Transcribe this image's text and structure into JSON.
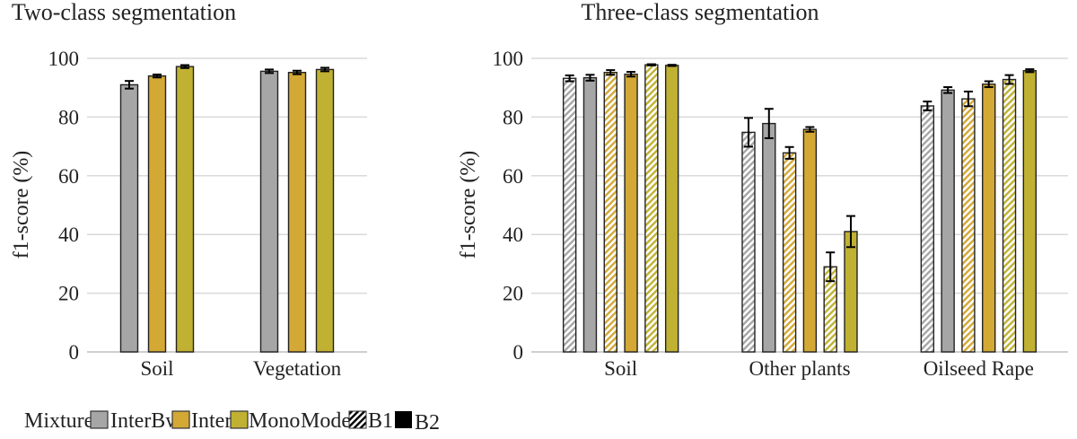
{
  "colors": {
    "InterBw": "#a6a6a6",
    "Inter": "#d3a835",
    "Mono": "#c0b132",
    "grid": "#d9d9d9",
    "error": "#000000"
  },
  "legend": {
    "mixtures_label": "Mixtures:",
    "mixtures": [
      "InterBw",
      "Inter",
      "Mono"
    ],
    "model_label": "Model:",
    "models": [
      "B1",
      "B2"
    ],
    "model_fill": {
      "B1": "hatched",
      "B2": "solid"
    }
  },
  "chart_data": [
    {
      "type": "bar",
      "title": "Two-class segmentation",
      "ylabel": "f1-score (%)",
      "xlabel": "",
      "ylim": [
        0,
        100
      ],
      "yticks": [
        "0",
        "20",
        "40",
        "60",
        "80",
        "100"
      ],
      "grid": true,
      "categories": [
        "Soil",
        "Vegetation"
      ],
      "series": [
        {
          "name": "InterBw",
          "model": "B2",
          "values": [
            91.0,
            95.6
          ],
          "errors": [
            1.3,
            0.6
          ]
        },
        {
          "name": "Inter",
          "model": "B2",
          "values": [
            94.0,
            95.2
          ],
          "errors": [
            0.5,
            0.6
          ]
        },
        {
          "name": "Mono",
          "model": "B2",
          "values": [
            97.2,
            96.2
          ],
          "errors": [
            0.5,
            0.6
          ]
        }
      ]
    },
    {
      "type": "bar",
      "title": "Three-class segmentation",
      "ylabel": "f1-score (%)",
      "xlabel": "",
      "ylim": [
        0,
        100
      ],
      "yticks": [
        "0",
        "20",
        "40",
        "60",
        "80",
        "100"
      ],
      "grid": true,
      "categories": [
        "Soil",
        "Other plants",
        "Oilseed Rape"
      ],
      "series": [
        {
          "name": "InterBw",
          "model": "B1",
          "values": [
            93.2,
            74.8,
            83.8
          ],
          "errors": [
            1.0,
            4.9,
            1.5
          ]
        },
        {
          "name": "InterBw",
          "model": "B2",
          "values": [
            93.4,
            77.8,
            89.2
          ],
          "errors": [
            1.0,
            5.0,
            1.0
          ]
        },
        {
          "name": "Inter",
          "model": "B1",
          "values": [
            95.2,
            67.8,
            86.2
          ],
          "errors": [
            0.8,
            2.0,
            2.5
          ]
        },
        {
          "name": "Inter",
          "model": "B2",
          "values": [
            94.6,
            75.8,
            91.2
          ],
          "errors": [
            0.8,
            0.8,
            1.0
          ]
        },
        {
          "name": "Mono",
          "model": "B1",
          "values": [
            97.8,
            29.0,
            92.8
          ],
          "errors": [
            0.2,
            4.9,
            1.5
          ]
        },
        {
          "name": "Mono",
          "model": "B2",
          "values": [
            97.6,
            41.0,
            95.8
          ],
          "errors": [
            0.2,
            5.3,
            0.5
          ]
        }
      ]
    }
  ]
}
